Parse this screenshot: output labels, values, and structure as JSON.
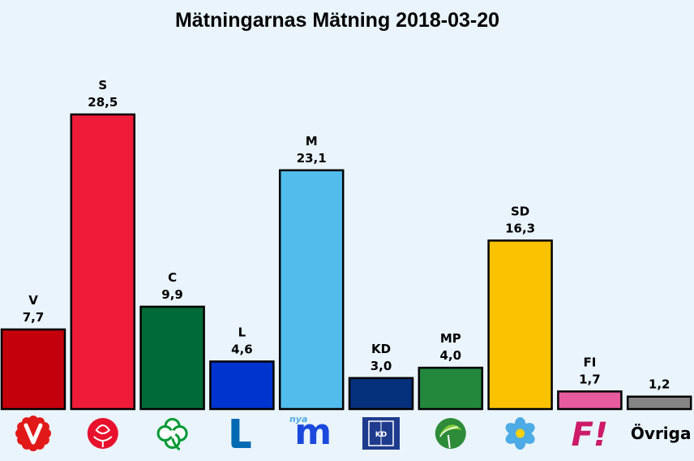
{
  "chart_data": {
    "type": "bar",
    "title": "Mätningarnas Mätning 2018-03-20",
    "xlabel": "",
    "ylabel": "",
    "ylim": [
      0,
      30
    ],
    "grid": false,
    "legend": "none",
    "categories": [
      "V",
      "S",
      "C",
      "L",
      "M",
      "KD",
      "MP",
      "SD",
      "FI",
      ""
    ],
    "values": [
      7.7,
      28.5,
      9.9,
      4.6,
      23.1,
      3.0,
      4.0,
      16.3,
      1.7,
      1.2
    ],
    "value_labels": [
      "7,7",
      "28,5",
      "9,9",
      "4,6",
      "23,1",
      "3,0",
      "4,0",
      "16,3",
      "1,7",
      "1,2"
    ],
    "colors": [
      "#c3000c",
      "#ee1c39",
      "#006a38",
      "#0034cf",
      "#52bdec",
      "#04307c",
      "#23873c",
      "#fac200",
      "#e65b9e",
      "#848484"
    ],
    "logos": [
      {
        "party": "V",
        "icon": "v-logo-icon",
        "color": "#e21919"
      },
      {
        "party": "S",
        "icon": "rose-logo-icon",
        "color": "#e8112d"
      },
      {
        "party": "C",
        "icon": "clover-logo-icon",
        "color": "#009933"
      },
      {
        "party": "L",
        "icon": "l-logo-icon",
        "color": "#006ab3"
      },
      {
        "party": "M",
        "icon": "m-logo-icon",
        "color": "#1b49dd",
        "text": "m",
        "subtext": "nya"
      },
      {
        "party": "KD",
        "icon": "kd-logo-icon",
        "color": "#1f3b8e",
        "text": "KD"
      },
      {
        "party": "MP",
        "icon": "dandelion-logo-icon",
        "color": "#83cf39"
      },
      {
        "party": "SD",
        "icon": "anemone-logo-icon",
        "color": "#4dabe6"
      },
      {
        "party": "FI",
        "icon": "fi-logo-icon",
        "color": "#cd1b68",
        "text": "F!"
      },
      {
        "party": "Övriga",
        "icon": "",
        "color": "#000000",
        "text": "Övriga"
      }
    ]
  }
}
